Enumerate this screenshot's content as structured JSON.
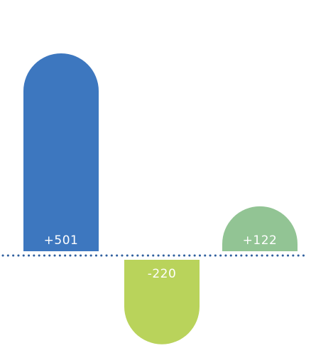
{
  "chart_data": {
    "type": "bar",
    "categories": [
      "",
      "",
      ""
    ],
    "values": [
      501,
      -220,
      122
    ],
    "data_labels": [
      "+501",
      "-220",
      "+122"
    ],
    "colors": [
      "#3d77bf",
      "#b9d35b",
      "#92c494"
    ],
    "baseline_color": "#2f5f9e",
    "baseline_style": "dotted",
    "ylim": [
      -330,
      620
    ],
    "grid": false,
    "legend": "none",
    "bar_shape": "rounded-end"
  }
}
